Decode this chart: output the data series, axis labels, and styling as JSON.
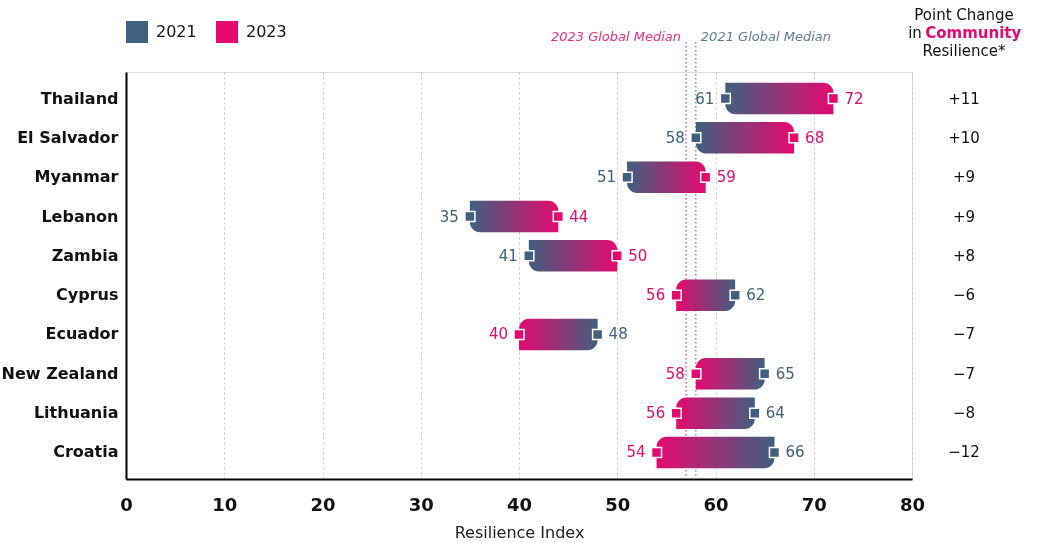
{
  "chart_data": {
    "type": "bar",
    "orientation": "horizontal",
    "categories": [
      "Thailand",
      "El Salvador",
      "Myanmar",
      "Lebanon",
      "Zambia",
      "Cyprus",
      "Ecuador",
      "New Zealand",
      "Lithuania",
      "Croatia"
    ],
    "base": [
      61,
      58,
      51,
      35,
      41,
      62,
      48,
      65,
      64,
      66
    ],
    "values": [
      11,
      10,
      8,
      9,
      9,
      -6,
      -8,
      -7,
      -8,
      -12
    ],
    "series": [
      {
        "name": "2021",
        "type": "scatter",
        "color": "#3f6080",
        "values": [
          61,
          58,
          51,
          35,
          41,
          62,
          48,
          65,
          64,
          66
        ],
        "value_labels": [
          "61",
          "58",
          "51",
          "35",
          "41",
          "62",
          "48",
          "65",
          "64",
          "66"
        ]
      },
      {
        "name": "2023",
        "type": "scatter",
        "color": "#e5096f",
        "values": [
          72,
          68,
          59,
          44,
          50,
          56,
          40,
          58,
          56,
          54
        ],
        "value_labels": [
          "72",
          "68",
          "59",
          "44",
          "50",
          "56",
          "40",
          "58",
          "56",
          "54"
        ]
      }
    ],
    "marker": "square",
    "xlabel": "Resilience Index",
    "xlim": [
      0,
      80
    ],
    "xticks": [
      0,
      10,
      20,
      30,
      40,
      50,
      60,
      70,
      80
    ],
    "grid": "x",
    "legend": "top left",
    "ref_lines": [
      {
        "axis": "x",
        "value": 57,
        "label": "2023 Global Median",
        "color": "#e6307e",
        "line_style": "dotted"
      },
      {
        "axis": "x",
        "value": 58,
        "label": "2021 Global Median",
        "color": "#5d7c9b",
        "line_style": "dotted"
      }
    ],
    "annotations": [
      "Point Change\nin Community\nResilience*",
      "+11",
      "+10",
      "+9",
      "+9",
      "+8",
      "−6",
      "−7",
      "−7",
      "−8",
      "−12"
    ]
  }
}
